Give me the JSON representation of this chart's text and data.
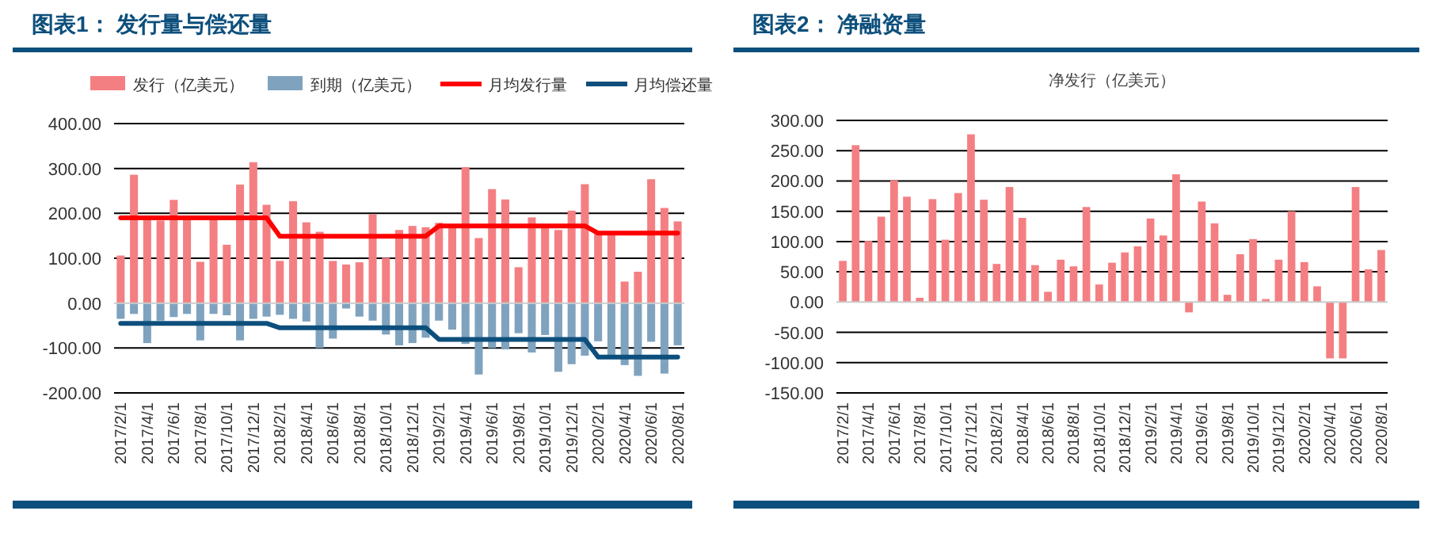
{
  "chart_data": [
    {
      "type": "bar",
      "title": "图表1：  发行量与偿还量",
      "stacked": true,
      "legend": "top",
      "grid": "y",
      "categories": [
        "2017/2/1",
        null,
        "2017/4/1",
        null,
        "2017/6/1",
        null,
        "2017/8/1",
        null,
        "2017/10/1",
        null,
        "2017/12/1",
        null,
        "2018/2/1",
        null,
        "2018/4/1",
        null,
        "2018/6/1",
        null,
        "2018/8/1",
        null,
        "2018/10/1",
        null,
        "2018/12/1",
        null,
        "2019/2/1",
        null,
        "2019/4/1",
        null,
        "2019/6/1",
        null,
        "2019/8/1",
        null,
        "2019/10/1",
        null,
        "2019/12/1",
        null,
        "2020/2/1",
        null,
        "2020/4/1",
        null,
        "2020/6/1",
        null,
        "2020/8/1"
      ],
      "ylim": [
        -200,
        400
      ],
      "yticks": [
        {
          "value": -200,
          "label": "-200.00"
        },
        {
          "value": -100,
          "label": "-100.00"
        },
        {
          "value": 0,
          "label": "0.00"
        },
        {
          "value": 100,
          "label": "100.00"
        },
        {
          "value": 200,
          "label": "200.00"
        },
        {
          "value": 300,
          "label": "300.00"
        },
        {
          "value": 400,
          "label": "400.00"
        }
      ],
      "series": [
        {
          "name": "发行（亿美元）",
          "color": "#f47f82",
          "values": [
            106,
            286,
            189,
            184,
            230,
            189,
            92,
            189,
            130,
            264,
            314,
            219,
            94,
            227,
            180,
            159,
            94,
            86,
            91,
            198,
            101,
            163,
            172,
            169,
            179,
            169,
            303,
            145,
            254,
            231,
            80,
            191,
            169,
            163,
            206,
            265,
            157,
            151,
            48,
            70,
            276,
            212,
            182
          ]
        },
        {
          "name": "到期（亿美元）",
          "color": "#7fa3bf",
          "values": [
            -35,
            -24,
            -89,
            -39,
            -31,
            -24,
            -83,
            -24,
            -27,
            -83,
            -35,
            -30,
            -26,
            -35,
            -41,
            -100,
            -79,
            -12,
            -30,
            -39,
            -70,
            -94,
            -89,
            -77,
            -39,
            -59,
            -91,
            -159,
            -100,
            -103,
            -67,
            -110,
            -71,
            -153,
            -136,
            -117,
            -85,
            -117,
            -138,
            -162,
            -86,
            -157,
            -94
          ]
        },
        {
          "name": "月均发行量",
          "type": "line",
          "color": "#ff0000",
          "values": [
            190,
            190,
            190,
            190,
            190,
            190,
            190,
            190,
            190,
            190,
            190,
            190,
            149,
            149,
            149,
            149,
            149,
            149,
            149,
            149,
            149,
            149,
            149,
            149,
            172,
            172,
            172,
            172,
            172,
            172,
            172,
            172,
            172,
            172,
            172,
            172,
            156,
            156,
            156,
            156,
            156,
            156,
            156
          ]
        },
        {
          "name": "月均偿还量",
          "type": "line",
          "color": "#0d4f7c",
          "values": [
            -45,
            -45,
            -45,
            -45,
            -45,
            -45,
            -45,
            -45,
            -45,
            -45,
            -45,
            -45,
            -55,
            -55,
            -55,
            -55,
            -55,
            -55,
            -55,
            -55,
            -55,
            -55,
            -55,
            -55,
            -81,
            -81,
            -81,
            -81,
            -81,
            -81,
            -81,
            -81,
            -81,
            -81,
            -81,
            -81,
            -120,
            -120,
            -120,
            -120,
            -120,
            -120,
            -120
          ]
        }
      ]
    },
    {
      "type": "bar",
      "title": "图表2：  净融资量",
      "subtitle": "净发行（亿美元）",
      "grid": "y",
      "color": "#f47f82",
      "categories": [
        "2017/2/1",
        null,
        "2017/4/1",
        null,
        "2017/6/1",
        null,
        "2017/8/1",
        null,
        "2017/10/1",
        null,
        "2017/12/1",
        null,
        "2018/2/1",
        null,
        "2018/4/1",
        null,
        "2018/6/1",
        null,
        "2018/8/1",
        null,
        "2018/10/1",
        null,
        "2018/12/1",
        null,
        "2019/2/1",
        null,
        "2019/4/1",
        null,
        "2019/6/1",
        null,
        "2019/8/1",
        null,
        "2019/10/1",
        null,
        "2019/12/1",
        null,
        "2020/2/1",
        null,
        "2020/4/1",
        null,
        "2020/6/1",
        null,
        "2020/8/1"
      ],
      "ylim": [
        -150,
        300
      ],
      "yticks": [
        {
          "value": -150,
          "label": "-150.00"
        },
        {
          "value": -100,
          "label": "-100.00"
        },
        {
          "value": -50,
          "label": "-50.00"
        },
        {
          "value": 0,
          "label": "0.00"
        },
        {
          "value": 50,
          "label": "50.00"
        },
        {
          "value": 100,
          "label": "100.00"
        },
        {
          "value": 150,
          "label": "150.00"
        },
        {
          "value": 200,
          "label": "200.00"
        },
        {
          "value": 250,
          "label": "250.00"
        },
        {
          "value": 300,
          "label": "300.00"
        }
      ],
      "values": [
        68,
        259,
        101,
        141,
        201,
        174,
        7,
        170,
        103,
        180,
        277,
        169,
        63,
        190,
        139,
        61,
        17,
        70,
        59,
        157,
        29,
        65,
        82,
        92,
        138,
        110,
        211,
        -17,
        166,
        130,
        12,
        79,
        104,
        5,
        70,
        150,
        66,
        26,
        -93,
        -93,
        190,
        54,
        86
      ]
    }
  ]
}
